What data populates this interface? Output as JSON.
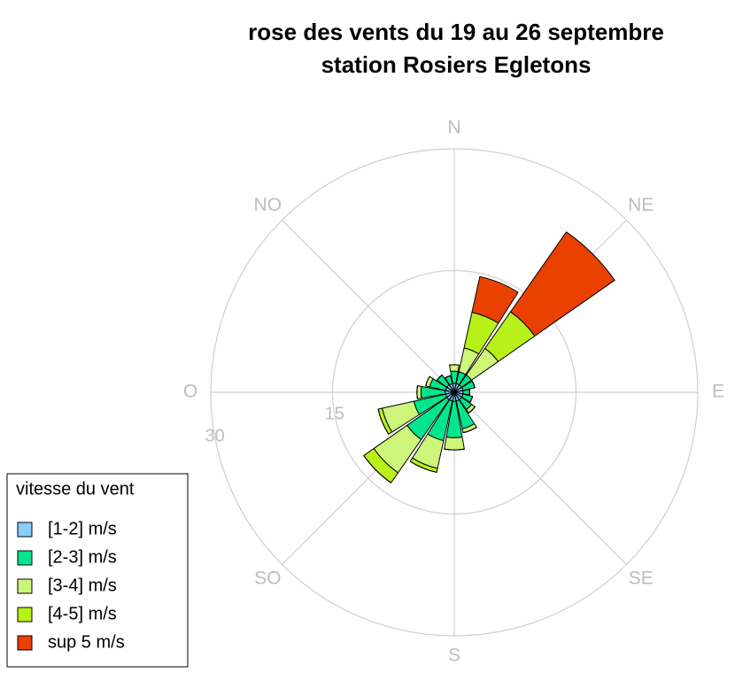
{
  "chart_data": {
    "type": "windrose",
    "title": "rose des vents du 19 au 26 septembre",
    "subtitle": "station Rosiers Egletons",
    "categories": [
      "N",
      null,
      "NE",
      null,
      "E",
      null,
      "SE",
      null,
      "S",
      null,
      "SO",
      null,
      "O",
      null,
      "NO",
      null
    ],
    "series": [
      {
        "name": "[1-2] m/s",
        "color": "#87cefa",
        "values": [
          1.1,
          1.1,
          1.1,
          1.1,
          1.1,
          1.1,
          1.1,
          1.1,
          1.1,
          1.1,
          1.1,
          1.1,
          1.1,
          1.1,
          1.1,
          1.1
        ]
      },
      {
        "name": "[2-3] m/s",
        "color": "#00e68c",
        "values": [
          1.5,
          1.5,
          1.5,
          1.5,
          0.8,
          1.2,
          1.5,
          3.5,
          4.5,
          5,
          6,
          4,
          3,
          2,
          1.5,
          1
        ]
      },
      {
        "name": "[3-4] m/s",
        "color": "#ccf57a",
        "values": [
          0.8,
          3,
          4,
          0,
          0,
          0,
          0.5,
          0.5,
          1.5,
          3.5,
          5,
          4,
          0.5,
          0.5,
          0,
          0
        ]
      },
      {
        "name": "[4-5] m/s",
        "color": "#b8f01a",
        "values": [
          0,
          4.5,
          5.5,
          0,
          0,
          0,
          0,
          0,
          0,
          0.5,
          1.5,
          0.5,
          0,
          0,
          0,
          0
        ]
      },
      {
        "name": "sup 5 m/s",
        "color": "#ea4000",
        "values": [
          0,
          4.5,
          12,
          0,
          0,
          0,
          0,
          0,
          0,
          0,
          0,
          0,
          0,
          0,
          0,
          0
        ]
      }
    ],
    "rlim": [
      0,
      30
    ],
    "rticks": [
      15,
      30
    ],
    "legend_title": "vitesse du vent",
    "legend": "bottom-left",
    "grid": true
  }
}
